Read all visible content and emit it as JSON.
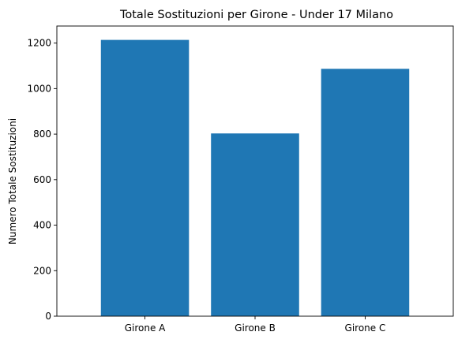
{
  "chart_data": {
    "type": "bar",
    "title": "Totale Sostituzioni per Girone - Under 17 Milano",
    "xlabel": "",
    "ylabel": "Numero Totale Sostituzioni",
    "categories": [
      "Girone A",
      "Girone B",
      "Girone C"
    ],
    "values": [
      1214,
      803,
      1087
    ],
    "ylim": [
      0,
      1275
    ],
    "yticks": [
      0,
      200,
      400,
      600,
      800,
      1000,
      1200
    ],
    "colors": {
      "bar": "#1f77b4"
    },
    "grid": false,
    "legend": "none"
  }
}
